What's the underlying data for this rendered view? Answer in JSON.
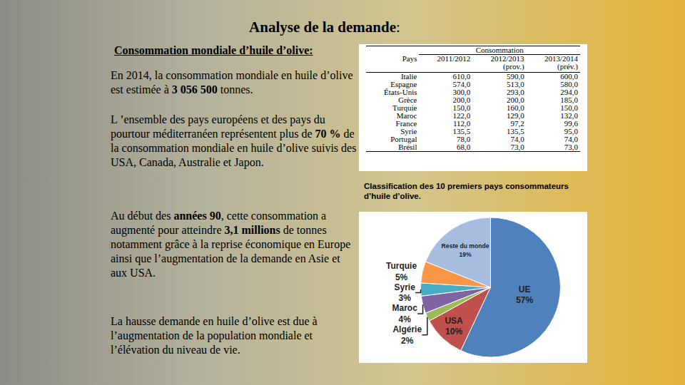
{
  "slide": {
    "title": [
      {
        "text": "Analyse de la demande",
        "bold": true
      },
      {
        "text": ":",
        "bold": false
      }
    ],
    "subtitle": "Consommation mondiale d’huile d’olive:",
    "paragraphs": [
      [
        {
          "text": "En 2014, la consommation mondiale en huile d’olive est estimée à ",
          "bold": false
        },
        {
          "text": "3 056 500",
          "bold": true
        },
        {
          "text": " tonnes.",
          "bold": false
        }
      ],
      [
        {
          "text": "L ’ensemble des pays européens et des pays du pourtour méditerranéen représentent plus de ",
          "bold": false
        },
        {
          "text": "70 %",
          "bold": true
        },
        {
          "text": " de la consommation mondiale en huile d’olive suivis des USA, Canada, Australie et Japon.",
          "bold": false
        }
      ],
      [
        {
          "text": "Au début des ",
          "bold": false
        },
        {
          "text": "années 90",
          "bold": true
        },
        {
          "text": ", cette consommation a augmenté pour atteindre ",
          "bold": false
        },
        {
          "text": "3,1 millions",
          "bold": true
        },
        {
          "text": " de tonnes notamment grâce à la reprise économique en Europe ainsi que l’augmentation de la demande en Asie et aux USA.",
          "bold": false
        }
      ],
      [
        {
          "text": "La hausse demande en huile d’olive est due à l’augmentation de la population mondiale et l’élévation du niveau de vie.",
          "bold": false
        }
      ]
    ],
    "table": {
      "group": "Consommation",
      "columns": [
        [
          "Pays"
        ],
        [
          "2011/2012"
        ],
        [
          "2012/2013",
          "(prov.)"
        ],
        [
          "2013/2014",
          "(prév.)"
        ]
      ],
      "rows": [
        [
          "Italie",
          "610,0",
          "590,0",
          "600,0"
        ],
        [
          "Espagne",
          "574,0",
          "513,0",
          "580,0"
        ],
        [
          "États-Unis",
          "300,0",
          "293,0",
          "294,0"
        ],
        [
          "Grèce",
          "200,0",
          "200,0",
          "185,0"
        ],
        [
          "Turquie",
          "150,0",
          "160,0",
          "150,0"
        ],
        [
          "Maroc",
          "122,0",
          "129,0",
          "132,0"
        ],
        [
          "France",
          "112,0",
          "97,2",
          "99,6"
        ],
        [
          "Syrie",
          "135,5",
          "135,5",
          "95,0"
        ],
        [
          "Portugal",
          "78,0",
          "74,0",
          "74,0"
        ],
        [
          "Brésil",
          "68,0",
          "73,0",
          "73,0"
        ]
      ],
      "caption": "Classification des 10 premiers pays consommateurs d’huile d’olive."
    }
  },
  "chart_data": {
    "type": "pie",
    "categories": [
      "UE",
      "USA",
      "Algérie",
      "Maroc",
      "Syrie",
      "Turquie",
      "Reste du monde"
    ],
    "values": [
      57,
      10,
      2,
      4,
      3,
      5,
      19
    ],
    "value_labels": [
      "57%",
      "10%",
      "2%",
      "4%",
      "3%",
      "5%",
      "19%"
    ],
    "colors": [
      "#4f81bd",
      "#c0504d",
      "#9bbb59",
      "#8064a2",
      "#4bacc6",
      "#f79646",
      "#a7bde0"
    ],
    "data_labels": true,
    "legend": "none"
  }
}
